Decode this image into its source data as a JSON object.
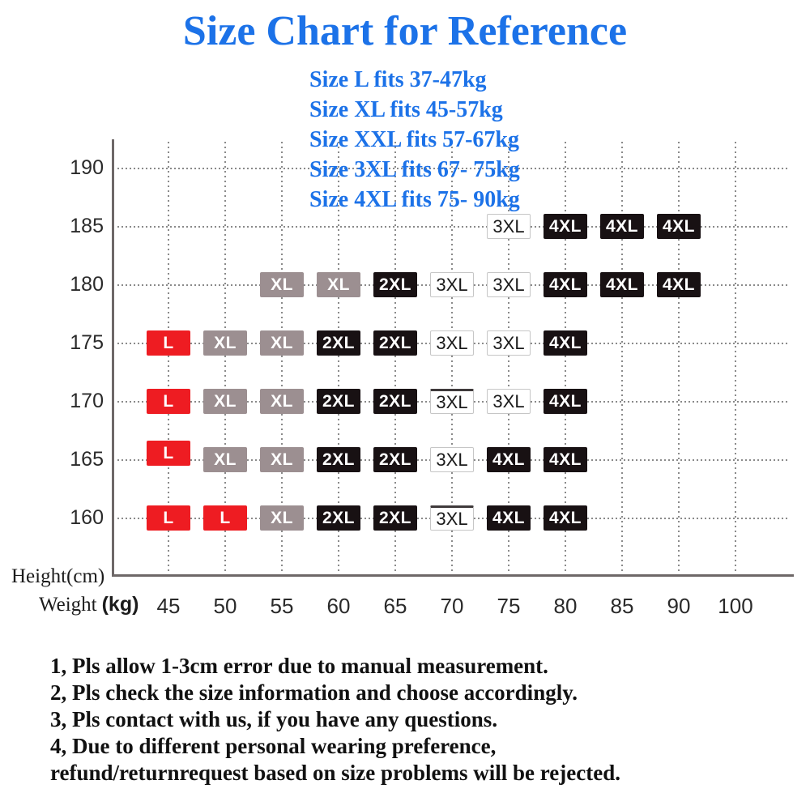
{
  "title": "Size Chart for Reference",
  "subtitle_lines": [
    "Size L fits 37-47kg",
    "Size XL fits 45-57kg",
    "Size XXL fits 57-67kg",
    "Size 3XL fits 67- 75kg",
    "Size 4XL fits 75- 90kg"
  ],
  "notes": [
    "1, Pls allow 1-3cm error due to manual measurement.",
    "2, Pls check the size information and choose accordingly.",
    "3, Pls contact with us, if you have any questions.",
    "4, Due to different personal wearing preference,",
    "refund/returnrequest based on size problems will be rejected."
  ],
  "colors": {
    "title_blue": "#1c72e8",
    "grid_dot": "#8a8a8a",
    "axis_line": "#6e6868",
    "axis_text": "#2a2a2a"
  },
  "size_styles": {
    "L": {
      "bg": "#ee1c22",
      "fg": "#ffffff"
    },
    "XL": {
      "bg": "#9c8f91",
      "fg": "#ffffff"
    },
    "2XL": {
      "bg": "#181113",
      "fg": "#ffffff"
    },
    "3XL": {
      "bg": "#ffffff",
      "fg": "#1a1a1a",
      "border": "#c6c6c6"
    },
    "4XL": {
      "bg": "#181113",
      "fg": "#ffffff"
    }
  },
  "chart_data": {
    "type": "heatmap",
    "title": "Size Chart for Reference",
    "ylabel": "Height(cm)",
    "xlabel_serif": "Weight",
    "xlabel_bold": "(kg)",
    "x_ticks": [
      45,
      50,
      55,
      60,
      65,
      70,
      75,
      80,
      85,
      90,
      100
    ],
    "y_ticks": [
      190,
      185,
      180,
      175,
      170,
      165,
      160
    ],
    "grid": true,
    "legend": "none",
    "cells": [
      {
        "height": 185,
        "weight": 75,
        "size": "3XL"
      },
      {
        "height": 185,
        "weight": 80,
        "size": "4XL"
      },
      {
        "height": 185,
        "weight": 85,
        "size": "4XL"
      },
      {
        "height": 185,
        "weight": 90,
        "size": "4XL"
      },
      {
        "height": 180,
        "weight": 55,
        "size": "XL"
      },
      {
        "height": 180,
        "weight": 60,
        "size": "XL"
      },
      {
        "height": 180,
        "weight": 65,
        "size": "2XL"
      },
      {
        "height": 180,
        "weight": 70,
        "size": "3XL"
      },
      {
        "height": 180,
        "weight": 75,
        "size": "3XL"
      },
      {
        "height": 180,
        "weight": 80,
        "size": "4XL"
      },
      {
        "height": 180,
        "weight": 85,
        "size": "4XL"
      },
      {
        "height": 180,
        "weight": 90,
        "size": "4XL"
      },
      {
        "height": 175,
        "weight": 45,
        "size": "L"
      },
      {
        "height": 175,
        "weight": 50,
        "size": "XL"
      },
      {
        "height": 175,
        "weight": 55,
        "size": "XL"
      },
      {
        "height": 175,
        "weight": 60,
        "size": "2XL"
      },
      {
        "height": 175,
        "weight": 65,
        "size": "2XL"
      },
      {
        "height": 175,
        "weight": 70,
        "size": "3XL"
      },
      {
        "height": 175,
        "weight": 75,
        "size": "3XL"
      },
      {
        "height": 175,
        "weight": 80,
        "size": "4XL"
      },
      {
        "height": 170,
        "weight": 45,
        "size": "L"
      },
      {
        "height": 170,
        "weight": 50,
        "size": "XL"
      },
      {
        "height": 170,
        "weight": 55,
        "size": "XL"
      },
      {
        "height": 170,
        "weight": 60,
        "size": "2XL"
      },
      {
        "height": 170,
        "weight": 65,
        "size": "2XL"
      },
      {
        "height": 170,
        "weight": 70,
        "size": "3XL",
        "topline": true
      },
      {
        "height": 170,
        "weight": 75,
        "size": "3XL"
      },
      {
        "height": 170,
        "weight": 80,
        "size": "4XL"
      },
      {
        "height": 165,
        "weight": 45,
        "size": "L",
        "dy": -8
      },
      {
        "height": 165,
        "weight": 50,
        "size": "XL"
      },
      {
        "height": 165,
        "weight": 55,
        "size": "XL"
      },
      {
        "height": 165,
        "weight": 60,
        "size": "2XL"
      },
      {
        "height": 165,
        "weight": 65,
        "size": "2XL"
      },
      {
        "height": 165,
        "weight": 70,
        "size": "3XL"
      },
      {
        "height": 165,
        "weight": 75,
        "size": "4XL"
      },
      {
        "height": 165,
        "weight": 80,
        "size": "4XL"
      },
      {
        "height": 160,
        "weight": 45,
        "size": "L"
      },
      {
        "height": 160,
        "weight": 50,
        "size": "L"
      },
      {
        "height": 160,
        "weight": 55,
        "size": "XL"
      },
      {
        "height": 160,
        "weight": 60,
        "size": "2XL"
      },
      {
        "height": 160,
        "weight": 65,
        "size": "2XL"
      },
      {
        "height": 160,
        "weight": 70,
        "size": "3XL",
        "topline": true
      },
      {
        "height": 160,
        "weight": 75,
        "size": "4XL"
      },
      {
        "height": 160,
        "weight": 80,
        "size": "4XL"
      }
    ]
  }
}
